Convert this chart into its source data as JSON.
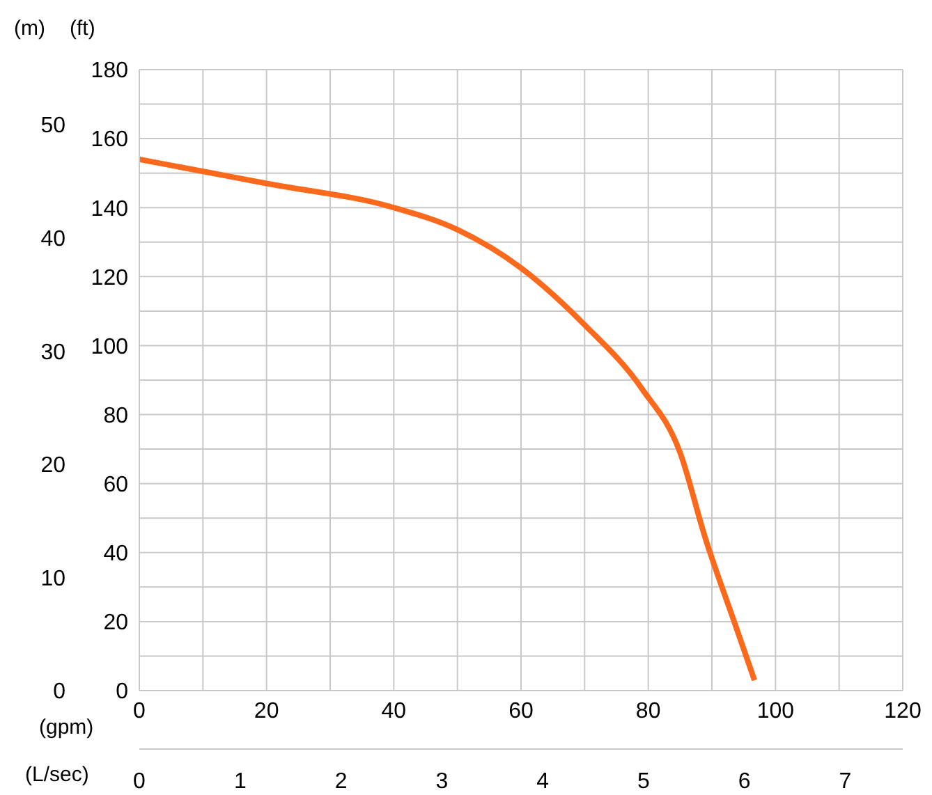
{
  "chart_data": {
    "type": "line",
    "xlabel": "(gpm)",
    "ylabel": "(ft)",
    "y2label": "(m)",
    "x2label": "(L/sec)",
    "series": [
      {
        "color": "#fb6a1c",
        "x": [
          0,
          20,
          40,
          50,
          60,
          70,
          79,
          85,
          89,
          93.5,
          96.7
        ],
        "values": [
          154,
          147,
          140,
          133.6,
          122.5,
          106,
          87.5,
          69,
          44,
          20,
          3
        ]
      }
    ],
    "xlim": [
      0,
      120
    ],
    "xticks": [
      0,
      {
        "value": 10,
        "label": null
      },
      20,
      {
        "value": 30,
        "label": null
      },
      40,
      {
        "value": 50,
        "label": null
      },
      60,
      {
        "value": 70,
        "label": null
      },
      80,
      {
        "value": 90,
        "label": null
      },
      100,
      {
        "value": 110,
        "label": null
      },
      120
    ],
    "ylim": [
      0,
      180
    ],
    "yticks": [
      0,
      {
        "value": 10,
        "label": null
      },
      20,
      {
        "value": 30,
        "label": null
      },
      40,
      {
        "value": 50,
        "label": null
      },
      60,
      {
        "value": 70,
        "label": null
      },
      80,
      {
        "value": 90,
        "label": null
      },
      100,
      {
        "value": 110,
        "label": null
      },
      120,
      {
        "value": 130,
        "label": null
      },
      140,
      {
        "value": 150,
        "label": null
      },
      160,
      {
        "value": 170,
        "label": null
      },
      180
    ],
    "y2lim": [
      0,
      54.86
    ],
    "y2ticks": [
      0,
      10,
      20,
      30,
      40,
      50
    ],
    "x2lim": [
      0,
      7.57
    ],
    "x2ticks": [
      0,
      1,
      2,
      3,
      4,
      5,
      6,
      7
    ],
    "grid": true,
    "marker": "none",
    "line_style": "solid"
  }
}
